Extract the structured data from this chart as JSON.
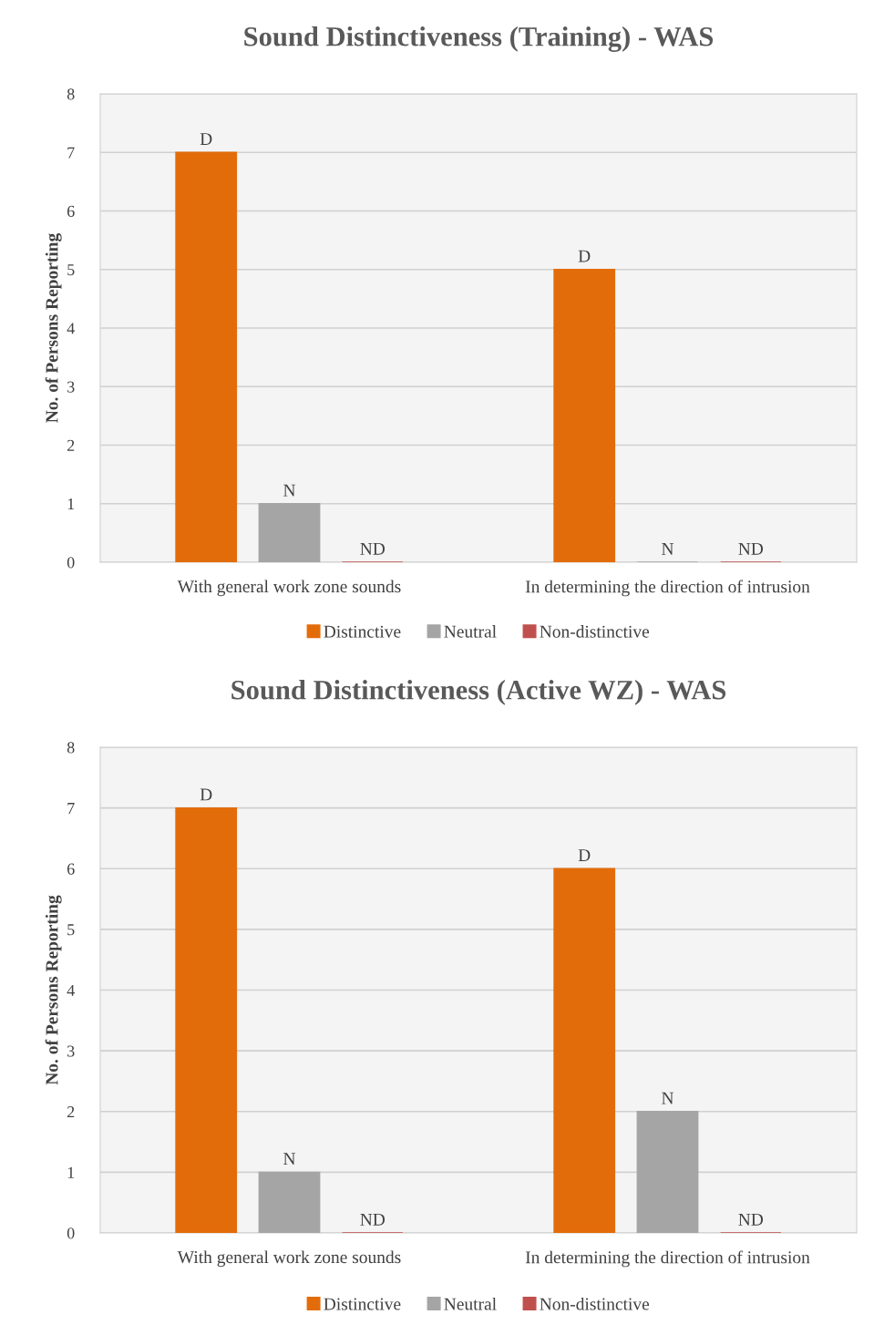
{
  "chart_data": [
    {
      "type": "bar",
      "title": "Sound Distinctiveness (Training) - WAS",
      "ylabel": "No. of Persons Reporting",
      "categories": [
        "With general work zone sounds",
        "In determining the direction of intrusion"
      ],
      "series": [
        {
          "name": "Distinctive",
          "color": "#e36c0a",
          "values": [
            7,
            5
          ],
          "value_labels": [
            "D",
            "D"
          ]
        },
        {
          "name": "Neutral",
          "color": "#a5a5a5",
          "values": [
            1,
            0
          ],
          "value_labels": [
            "N",
            "N"
          ]
        },
        {
          "name": "Non-distinctive",
          "color": "#c0504d",
          "values": [
            0,
            0
          ],
          "value_labels": [
            "ND",
            "ND"
          ]
        }
      ],
      "ylim": [
        0,
        8
      ],
      "yticks": [
        0,
        1,
        2,
        3,
        4,
        5,
        6,
        7,
        8
      ],
      "grid": "y",
      "legend": "bottom"
    },
    {
      "type": "bar",
      "title": "Sound Distinctiveness (Active WZ) - WAS",
      "ylabel": "No. of Persons Reporting",
      "categories": [
        "With general work zone sounds",
        "In determining the direction of intrusion"
      ],
      "series": [
        {
          "name": "Distinctive",
          "color": "#e36c0a",
          "values": [
            7,
            6
          ],
          "value_labels": [
            "D",
            "D"
          ]
        },
        {
          "name": "Neutral",
          "color": "#a5a5a5",
          "values": [
            1,
            2
          ],
          "value_labels": [
            "N",
            "N"
          ]
        },
        {
          "name": "Non-distinctive",
          "color": "#c0504d",
          "values": [
            0,
            0
          ],
          "value_labels": [
            "ND",
            "ND"
          ]
        }
      ],
      "ylim": [
        0,
        8
      ],
      "yticks": [
        0,
        1,
        2,
        3,
        4,
        5,
        6,
        7,
        8
      ],
      "grid": "y",
      "legend": "bottom"
    }
  ]
}
